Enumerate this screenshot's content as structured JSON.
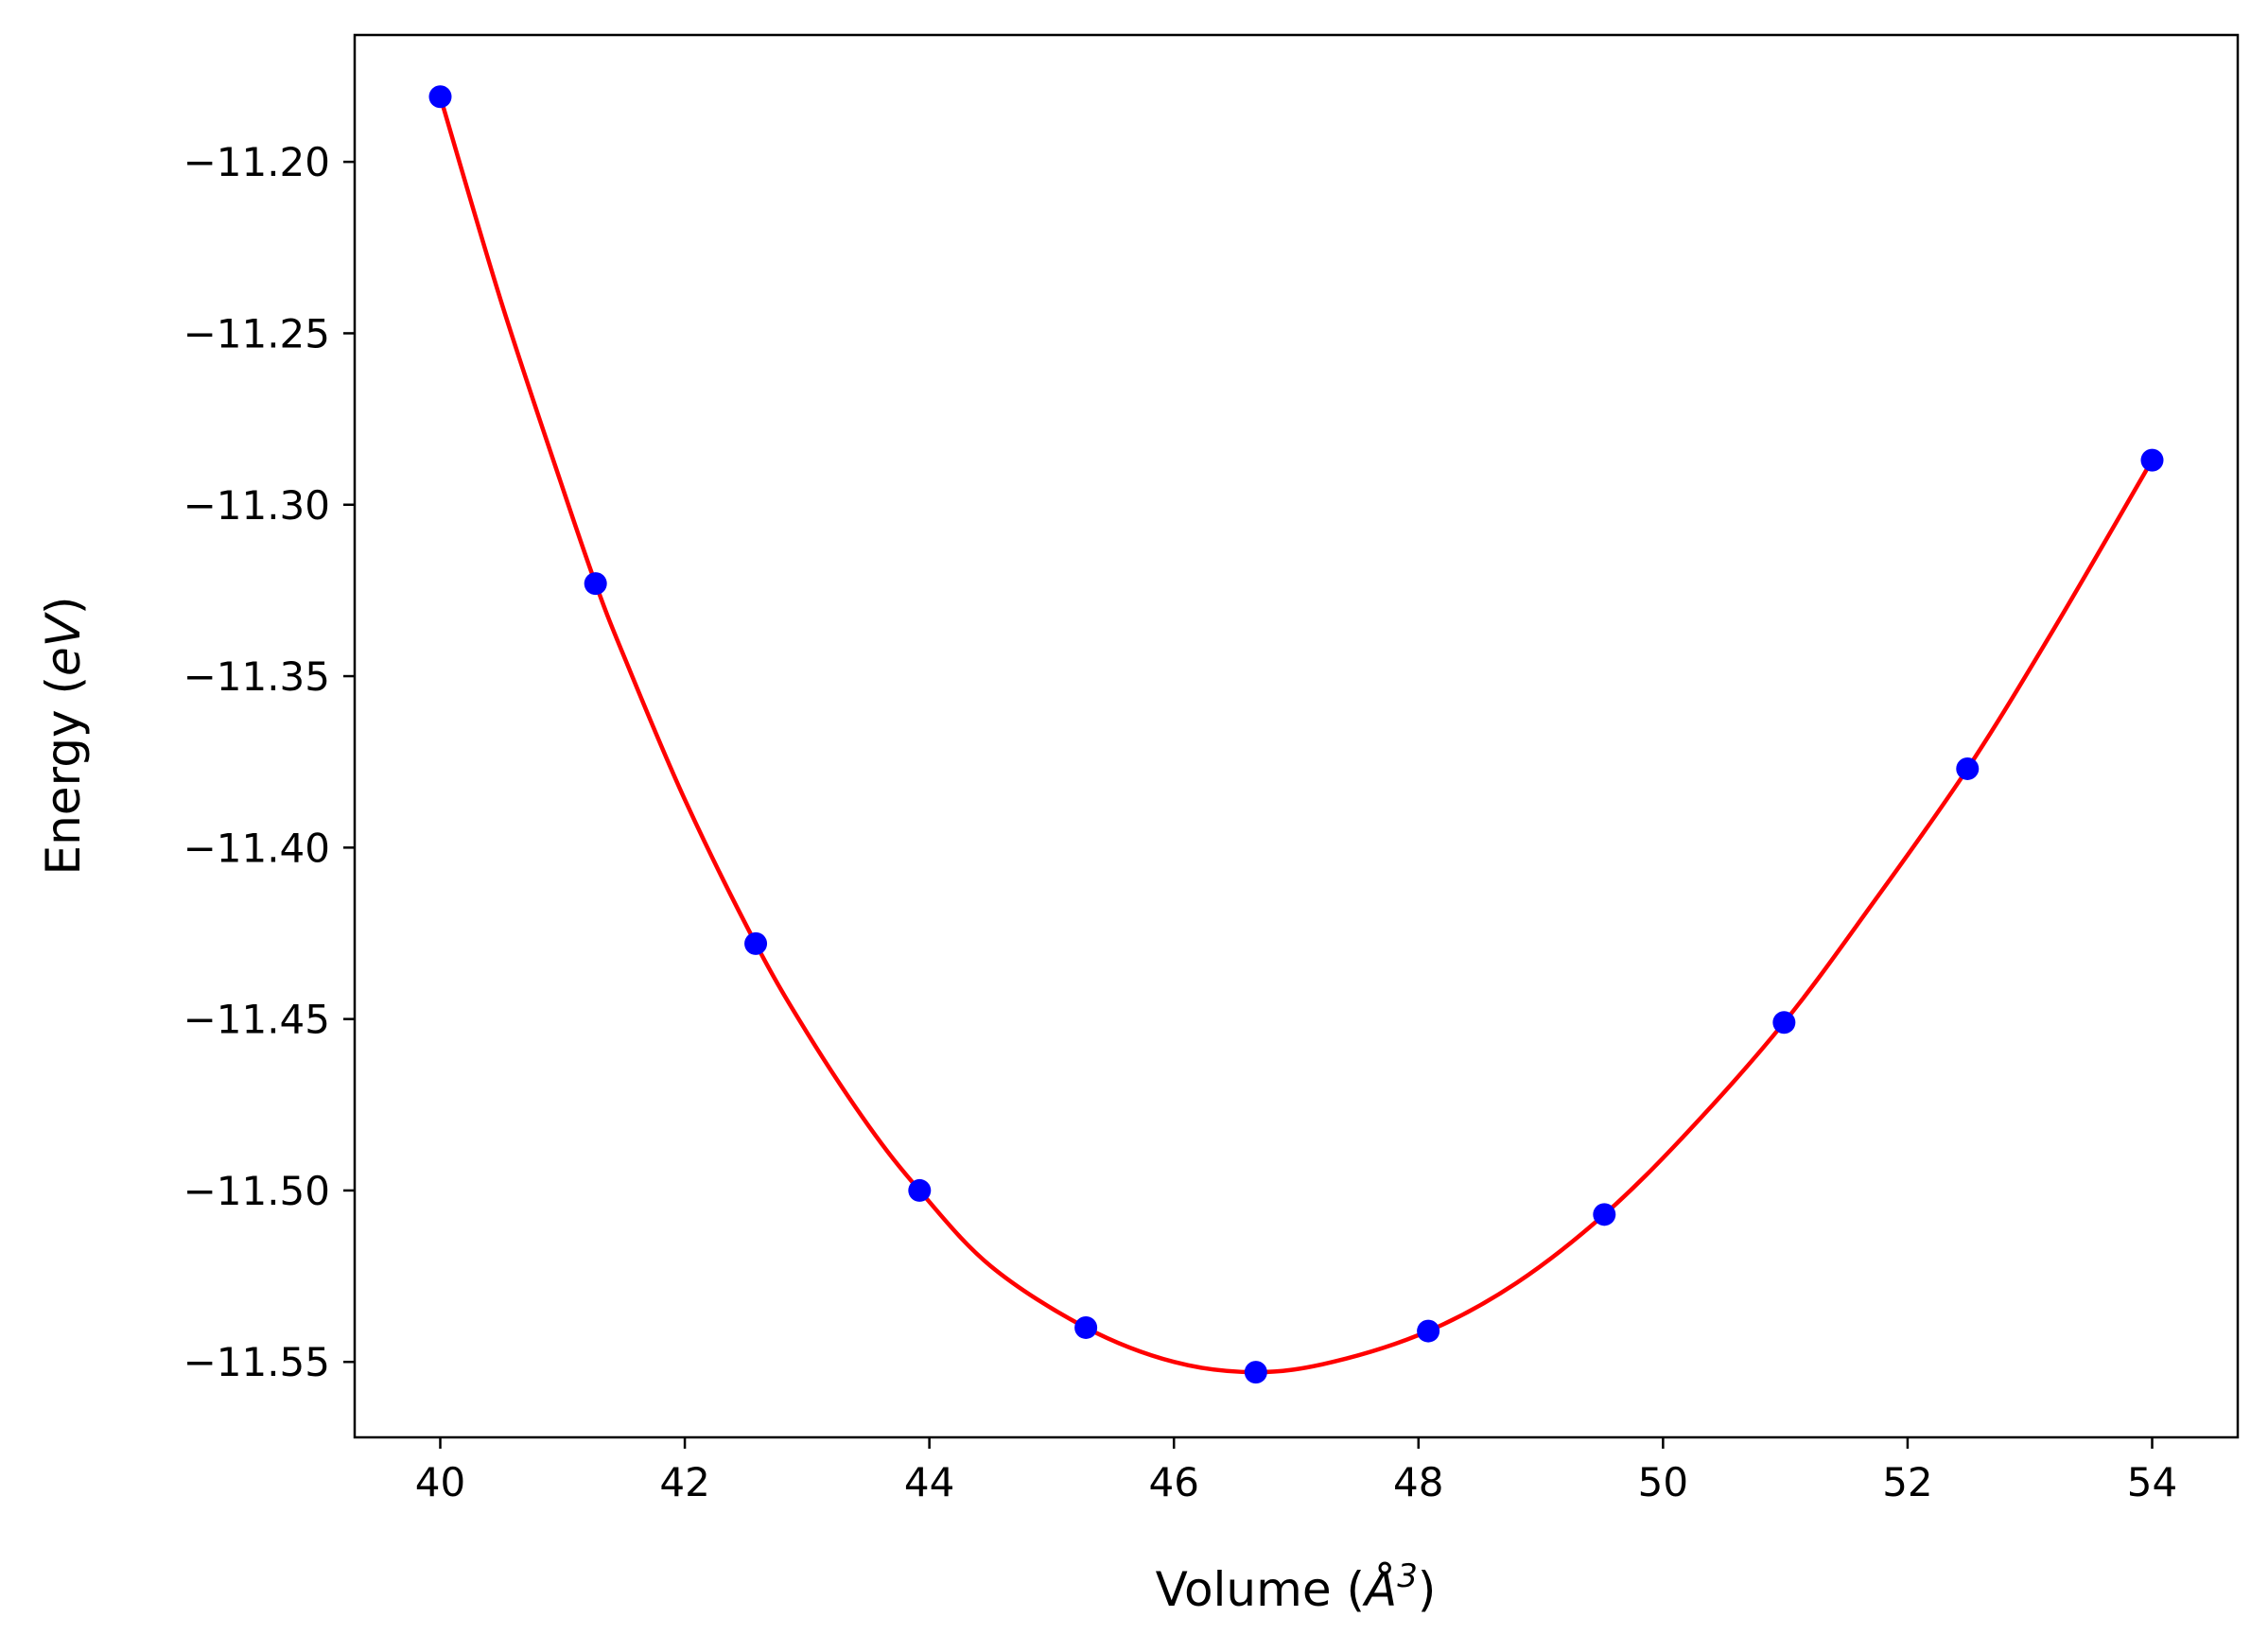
{
  "chart_data": {
    "type": "scatter",
    "title": "",
    "xlabel": {
      "prefix": "Volume (",
      "unit": "Å",
      "exponent": "3",
      "suffix": ")"
    },
    "ylabel": {
      "prefix": "Energy (",
      "unit": "eV",
      "suffix": ")"
    },
    "xlim": [
      39.3,
      54.7
    ],
    "ylim": [
      -11.572,
      -11.163
    ],
    "x_ticks": [
      40,
      42,
      44,
      46,
      48,
      50,
      52,
      54
    ],
    "x_tick_labels": [
      "40",
      "42",
      "44",
      "46",
      "48",
      "50",
      "52",
      "54"
    ],
    "y_ticks": [
      -11.2,
      -11.25,
      -11.3,
      -11.35,
      -11.4,
      -11.45,
      -11.5,
      -11.55
    ],
    "y_tick_labels": [
      "−11.20",
      "−11.25",
      "−11.30",
      "−11.35",
      "−11.40",
      "−11.45",
      "−11.50",
      "−11.55"
    ],
    "grid": false,
    "legend": "none",
    "series": [
      {
        "kind": "points",
        "color": "#0000ff",
        "marker": "circle",
        "x": [
          40.0,
          41.27,
          42.58,
          43.92,
          45.28,
          46.67,
          48.08,
          49.52,
          50.99,
          52.49,
          54.0
        ],
        "y": [
          -11.181,
          -11.323,
          -11.428,
          -11.5,
          -11.54,
          -11.553,
          -11.541,
          -11.507,
          -11.451,
          -11.377,
          -11.287
        ]
      },
      {
        "kind": "fit-curve",
        "color": "#ff0000",
        "x": [
          40.0,
          40.5,
          41.0,
          41.27,
          41.5,
          42.0,
          42.58,
          43.0,
          43.5,
          43.92,
          44.5,
          45.28,
          46.0,
          46.67,
          47.3,
          48.08,
          48.8,
          49.52,
          50.2,
          50.99,
          51.7,
          52.49,
          53.2,
          54.0
        ],
        "y": [
          -11.181,
          -11.241,
          -11.295,
          -11.323,
          -11.344,
          -11.386,
          -11.428,
          -11.454,
          -11.481,
          -11.5,
          -11.522,
          -11.54,
          -11.55,
          -11.553,
          -11.55,
          -11.541,
          -11.527,
          -11.507,
          -11.483,
          -11.451,
          -11.417,
          -11.377,
          -11.336,
          -11.287
        ]
      }
    ]
  }
}
